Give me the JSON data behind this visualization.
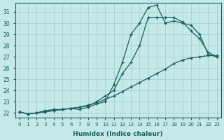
{
  "xlabel": "Humidex (Indice chaleur)",
  "ylabel": "",
  "bg_color": "#c5e8e8",
  "grid_color": "#aad4d4",
  "line_color": "#1a6060",
  "xlim": [
    -0.5,
    23.5
  ],
  "ylim": [
    21.6,
    31.8
  ],
  "yticks": [
    22,
    23,
    24,
    25,
    26,
    27,
    28,
    29,
    30,
    31
  ],
  "xticks": [
    0,
    1,
    2,
    3,
    4,
    5,
    6,
    7,
    8,
    9,
    10,
    11,
    12,
    13,
    14,
    15,
    16,
    17,
    18,
    19,
    20,
    21,
    22,
    23
  ],
  "line1_x": [
    0,
    1,
    2,
    3,
    4,
    5,
    6,
    7,
    8,
    9,
    10,
    11,
    12,
    13,
    14,
    15,
    16,
    17,
    18,
    19,
    20,
    21,
    22,
    23
  ],
  "line1_y": [
    22.1,
    21.9,
    22.0,
    22.2,
    22.3,
    22.3,
    22.4,
    22.3,
    22.5,
    22.8,
    23.0,
    24.5,
    26.5,
    29.0,
    30.0,
    31.4,
    31.6,
    30.0,
    30.2,
    30.0,
    29.8,
    29.0,
    27.2,
    27.0
  ],
  "line2_x": [
    0,
    1,
    2,
    3,
    4,
    5,
    6,
    7,
    8,
    9,
    10,
    11,
    12,
    13,
    14,
    15,
    16,
    17,
    18,
    19,
    20,
    21,
    22,
    23
  ],
  "line2_y": [
    22.1,
    21.9,
    22.0,
    22.1,
    22.2,
    22.3,
    22.4,
    22.5,
    22.6,
    23.0,
    23.5,
    24.0,
    25.5,
    26.5,
    28.0,
    30.5,
    30.5,
    30.5,
    30.5,
    30.1,
    29.3,
    28.6,
    27.4,
    27.0
  ],
  "line3_x": [
    0,
    1,
    2,
    3,
    4,
    5,
    6,
    7,
    8,
    9,
    10,
    11,
    12,
    13,
    14,
    15,
    16,
    17,
    18,
    19,
    20,
    21,
    22,
    23
  ],
  "line3_y": [
    22.1,
    21.9,
    22.0,
    22.1,
    22.2,
    22.3,
    22.4,
    22.5,
    22.7,
    22.9,
    23.2,
    23.5,
    23.9,
    24.3,
    24.7,
    25.1,
    25.5,
    25.9,
    26.4,
    26.7,
    26.9,
    27.0,
    27.1,
    27.1
  ]
}
